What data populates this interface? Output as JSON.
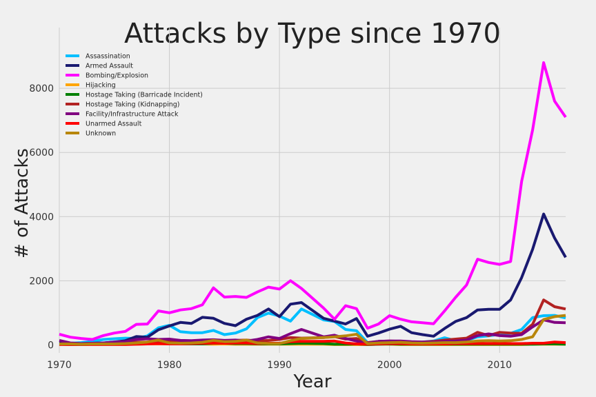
{
  "chart_data": {
    "type": "line",
    "title": "Attacks by Type since 1970",
    "xlabel": "Year",
    "ylabel": "# of Attacks",
    "xlim": [
      1970,
      2016
    ],
    "ylim": [
      -250,
      9250
    ],
    "xticks": [
      1970,
      1980,
      1990,
      2000,
      2010
    ],
    "yticks": [
      0,
      2000,
      4000,
      6000,
      8000
    ],
    "grid": true,
    "legend_position": "top-left",
    "x": [
      1970,
      1971,
      1972,
      1973,
      1974,
      1975,
      1976,
      1977,
      1978,
      1979,
      1980,
      1981,
      1982,
      1983,
      1984,
      1985,
      1986,
      1987,
      1988,
      1989,
      1990,
      1991,
      1992,
      1994,
      1995,
      1996,
      1997,
      1998,
      1999,
      2000,
      2001,
      2002,
      2003,
      2004,
      2005,
      2006,
      2007,
      2008,
      2009,
      2010,
      2011,
      2012,
      2013,
      2014,
      2015,
      2016
    ],
    "series": [
      {
        "name": "Assassination",
        "color": "#00bfff",
        "values": [
          90,
          50,
          70,
          110,
          170,
          190,
          210,
          200,
          280,
          530,
          610,
          410,
          380,
          380,
          450,
          320,
          370,
          500,
          850,
          990,
          900,
          740,
          1120,
          780,
          730,
          480,
          440,
          70,
          110,
          110,
          100,
          80,
          90,
          120,
          220,
          130,
          140,
          250,
          280,
          330,
          360,
          480,
          850,
          910,
          920,
          840
        ]
      },
      {
        "name": "Armed Assault",
        "color": "#191970",
        "values": [
          60,
          50,
          40,
          50,
          60,
          90,
          130,
          260,
          240,
          470,
          590,
          700,
          670,
          860,
          830,
          670,
          600,
          800,
          920,
          1120,
          880,
          1270,
          1320,
          830,
          740,
          650,
          820,
          270,
          370,
          490,
          580,
          380,
          320,
          270,
          510,
          730,
          850,
          1090,
          1110,
          1110,
          1400,
          2100,
          2980,
          4080,
          3330,
          2730
        ]
      },
      {
        "name": "Bombing/Explosion",
        "color": "#ff00ff",
        "values": [
          333,
          240,
          200,
          170,
          290,
          370,
          420,
          640,
          650,
          1060,
          1000,
          1090,
          1130,
          1250,
          1780,
          1490,
          1510,
          1480,
          1650,
          1800,
          1740,
          2000,
          1760,
          1150,
          800,
          1220,
          1130,
          520,
          650,
          910,
          800,
          720,
          690,
          660,
          1060,
          1480,
          1870,
          2670,
          2570,
          2510,
          2600,
          5100,
          6700,
          8800,
          7600,
          7100
        ]
      },
      {
        "name": "Hijacking",
        "color": "#ffa500",
        "values": [
          20,
          20,
          20,
          20,
          20,
          20,
          20,
          20,
          30,
          30,
          30,
          30,
          30,
          30,
          20,
          30,
          20,
          20,
          20,
          20,
          20,
          20,
          20,
          20,
          10,
          10,
          10,
          10,
          20,
          20,
          10,
          10,
          10,
          10,
          10,
          10,
          10,
          10,
          10,
          10,
          10,
          10,
          20,
          20,
          20,
          20
        ]
      },
      {
        "name": "Hostage Taking (Barricade Incident)",
        "color": "#008000",
        "values": [
          20,
          10,
          10,
          20,
          30,
          30,
          30,
          40,
          60,
          120,
          40,
          30,
          30,
          30,
          50,
          50,
          40,
          40,
          30,
          30,
          30,
          40,
          50,
          40,
          20,
          20,
          30,
          10,
          20,
          30,
          20,
          20,
          20,
          20,
          20,
          20,
          20,
          20,
          20,
          20,
          20,
          20,
          20,
          30,
          30,
          20
        ]
      },
      {
        "name": "Hostage Taking (Kidnapping)",
        "color": "#b22222",
        "values": [
          20,
          10,
          20,
          30,
          40,
          50,
          60,
          80,
          90,
          120,
          110,
          90,
          100,
          110,
          130,
          130,
          140,
          150,
          120,
          140,
          170,
          230,
          210,
          230,
          260,
          180,
          200,
          70,
          110,
          120,
          110,
          80,
          90,
          110,
          150,
          180,
          210,
          390,
          290,
          390,
          370,
          360,
          640,
          1400,
          1190,
          1120
        ]
      },
      {
        "name": "Facility/Infrastructure Attack",
        "color": "#800080",
        "values": [
          140,
          60,
          40,
          50,
          60,
          90,
          100,
          170,
          190,
          170,
          180,
          140,
          130,
          150,
          160,
          140,
          150,
          120,
          170,
          250,
          200,
          350,
          480,
          250,
          300,
          200,
          120,
          50,
          110,
          120,
          120,
          100,
          90,
          90,
          110,
          120,
          150,
          290,
          340,
          290,
          270,
          320,
          560,
          780,
          700,
          690
        ]
      },
      {
        "name": "Unarmed Assault",
        "color": "#ff0000",
        "values": [
          10,
          10,
          10,
          10,
          10,
          10,
          10,
          20,
          30,
          40,
          30,
          30,
          40,
          50,
          60,
          50,
          60,
          60,
          40,
          50,
          50,
          100,
          110,
          110,
          120,
          60,
          30,
          20,
          30,
          40,
          40,
          30,
          30,
          30,
          30,
          40,
          40,
          40,
          40,
          40,
          40,
          40,
          50,
          50,
          90,
          70
        ]
      },
      {
        "name": "Unknown",
        "color": "#b8860b",
        "values": [
          30,
          30,
          20,
          30,
          30,
          30,
          40,
          60,
          90,
          150,
          60,
          50,
          60,
          80,
          140,
          100,
          110,
          150,
          60,
          40,
          40,
          130,
          200,
          230,
          250,
          280,
          330,
          40,
          60,
          70,
          80,
          60,
          50,
          60,
          70,
          70,
          90,
          120,
          130,
          120,
          130,
          170,
          250,
          790,
          880,
          920
        ]
      }
    ]
  }
}
